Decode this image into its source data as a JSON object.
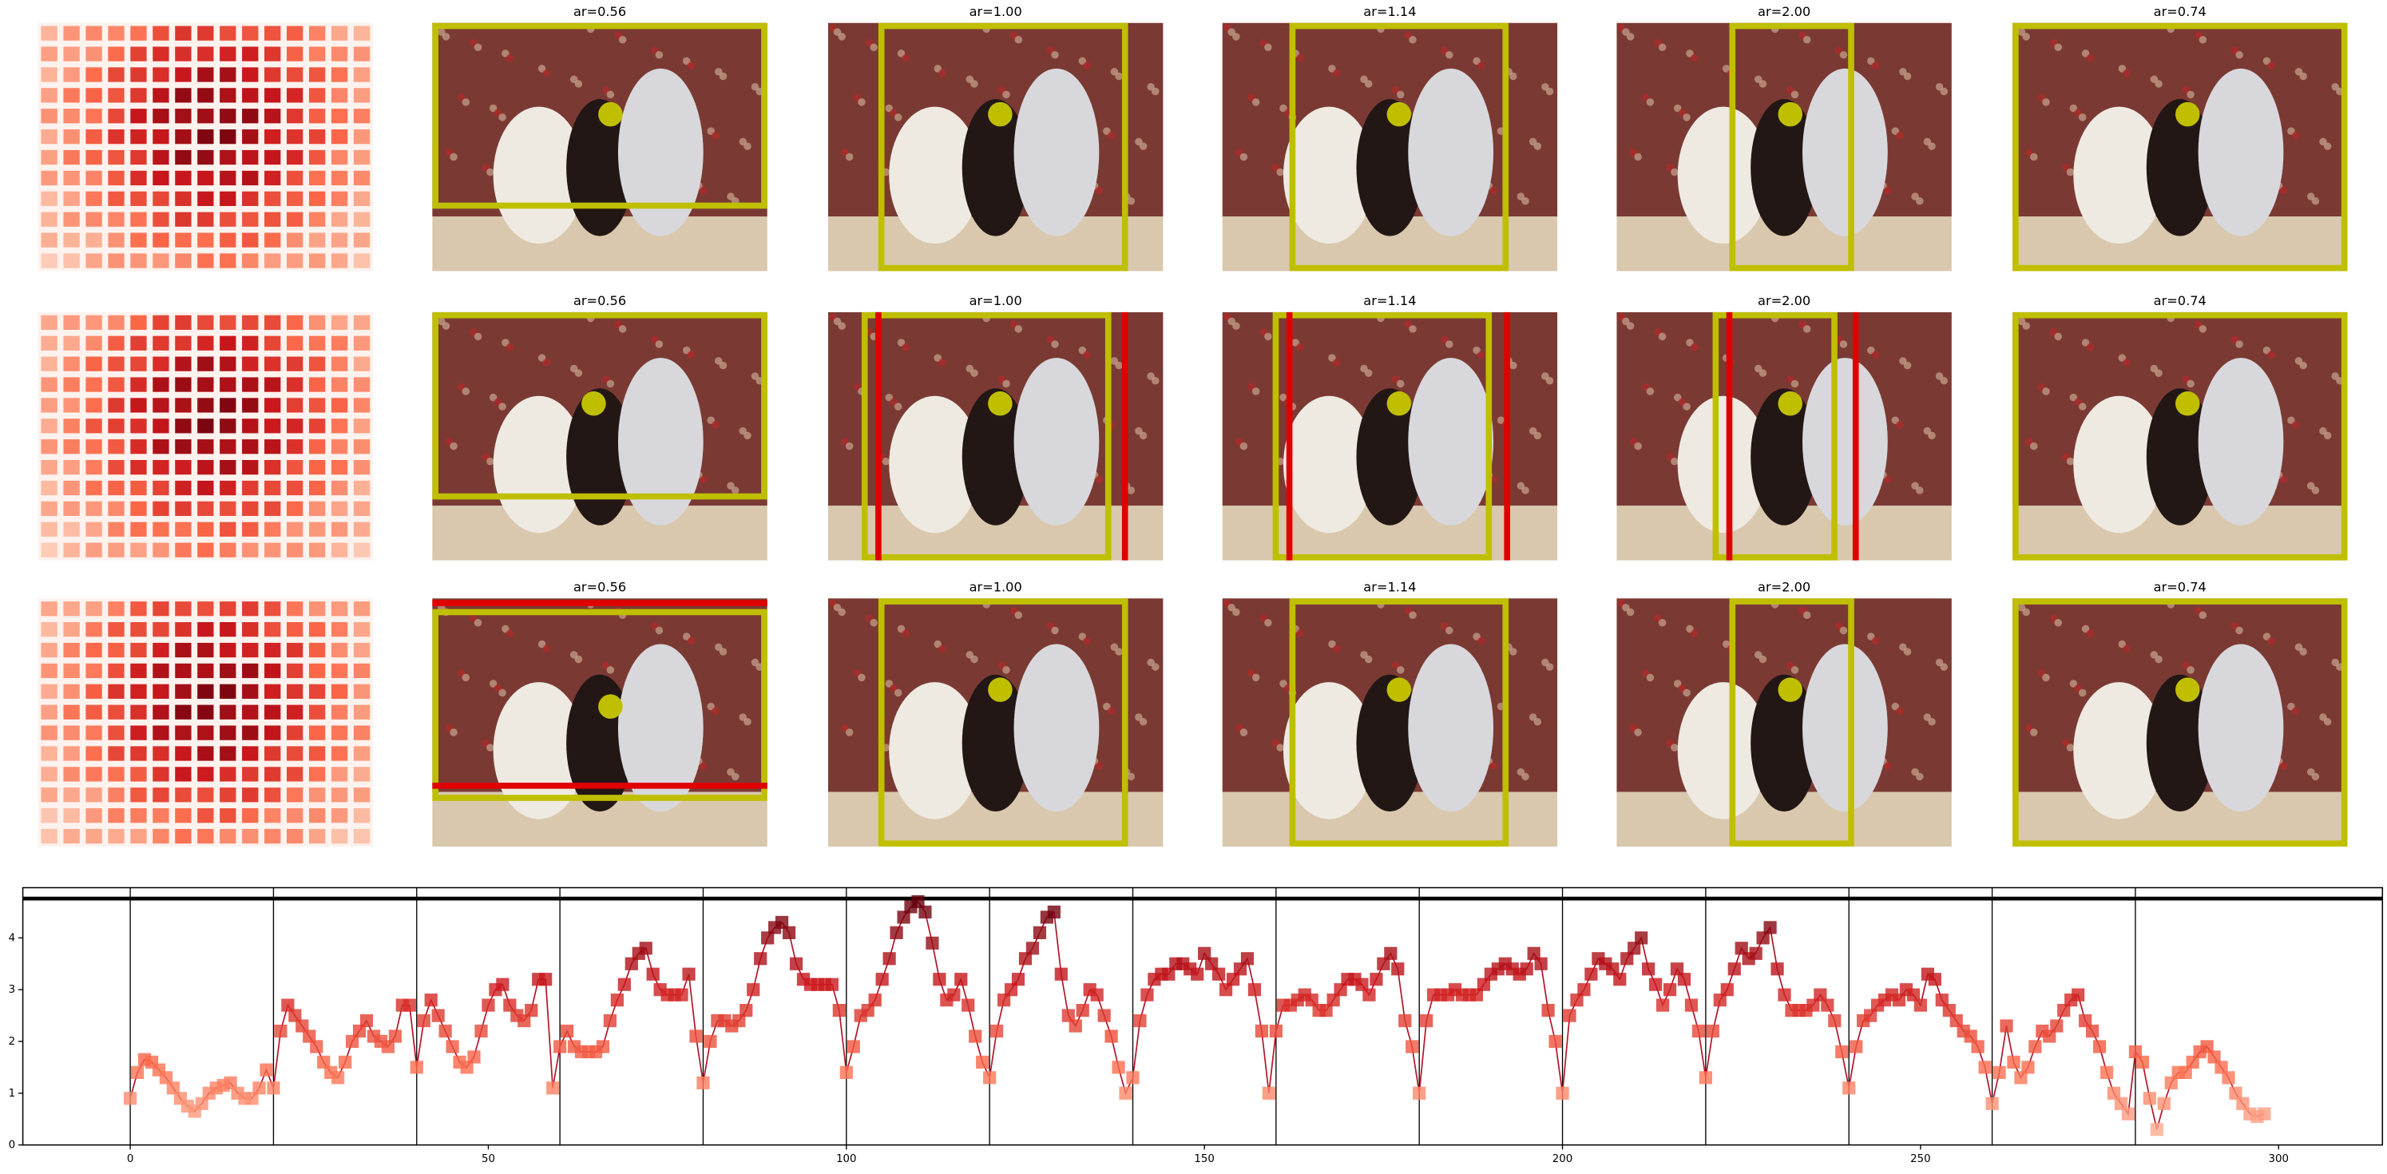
{
  "panel_titles": [
    [
      "ar=0.56",
      "ar=1.00",
      "ar=1.14",
      "ar=2.00",
      "ar=0.74"
    ],
    [
      "ar=0.56",
      "ar=1.00",
      "ar=1.14",
      "ar=2.00",
      "ar=0.74"
    ],
    [
      "ar=0.56",
      "ar=1.00",
      "ar=1.14",
      "ar=2.00",
      "ar=0.74"
    ]
  ],
  "chart_data": {
    "type": "line",
    "color": "#b2182b",
    "marker_colormap": "Reds",
    "x": [
      0,
      1,
      2,
      3,
      4,
      5,
      6,
      7,
      8,
      9,
      10,
      11,
      12,
      13,
      14,
      15,
      16,
      17,
      18,
      19,
      20,
      21,
      22,
      23,
      24,
      25,
      26,
      27,
      28,
      29,
      30,
      31,
      32,
      33,
      34,
      35,
      36,
      37,
      38,
      39,
      40,
      41,
      42,
      43,
      44,
      45,
      46,
      47,
      48,
      49,
      50,
      51,
      52,
      53,
      54,
      55,
      56,
      57,
      58,
      59,
      60,
      61,
      62,
      63,
      64,
      65,
      66,
      67,
      68,
      69,
      70,
      71,
      72,
      73,
      74,
      75,
      76,
      77,
      78,
      79,
      80,
      81,
      82,
      83,
      84,
      85,
      86,
      87,
      88,
      89,
      90,
      91,
      92,
      93,
      94,
      95,
      96,
      97,
      98,
      99,
      100,
      101,
      102,
      103,
      104,
      105,
      106,
      107,
      108,
      109,
      110,
      111,
      112,
      113,
      114,
      115,
      116,
      117,
      118,
      119,
      120,
      121,
      122,
      123,
      124,
      125,
      126,
      127,
      128,
      129,
      130,
      131,
      132,
      133,
      134,
      135,
      136,
      137,
      138,
      139,
      140,
      141,
      142,
      143,
      144,
      145,
      146,
      147,
      148,
      149,
      150,
      151,
      152,
      153,
      154,
      155,
      156,
      157,
      158,
      159,
      160,
      161,
      162,
      163,
      164,
      165,
      166,
      167,
      168,
      169,
      170,
      171,
      172,
      173,
      174,
      175,
      176,
      177,
      178,
      179,
      180,
      181,
      182,
      183,
      184,
      185,
      186,
      187,
      188,
      189,
      190,
      191,
      192,
      193,
      194,
      195,
      196,
      197,
      198,
      199,
      200,
      201,
      202,
      203,
      204,
      205,
      206,
      207,
      208,
      209,
      210,
      211,
      212,
      213,
      214,
      215,
      216,
      217,
      218,
      219,
      220,
      221,
      222,
      223,
      224,
      225,
      226,
      227,
      228,
      229,
      230,
      231,
      232,
      233,
      234,
      235,
      236,
      237,
      238,
      239,
      240,
      241,
      242,
      243,
      244,
      245,
      246,
      247,
      248,
      249,
      250,
      251,
      252,
      253,
      254,
      255,
      256,
      257,
      258,
      259,
      260,
      261,
      262,
      263,
      264,
      265,
      266,
      267,
      268,
      269,
      270,
      271,
      272,
      273,
      274,
      275,
      276,
      277,
      278,
      279,
      280,
      281,
      282,
      283,
      284,
      285,
      286,
      287,
      288,
      289,
      290,
      291,
      292,
      293,
      294,
      295,
      296,
      297,
      298
    ],
    "values": [
      0.9,
      1.4,
      1.65,
      1.6,
      1.45,
      1.3,
      1.1,
      0.9,
      0.75,
      0.65,
      0.8,
      1.0,
      1.1,
      1.15,
      1.2,
      1.0,
      0.9,
      0.9,
      1.1,
      1.45,
      1.1,
      2.2,
      2.7,
      2.5,
      2.3,
      2.1,
      1.9,
      1.6,
      1.4,
      1.3,
      1.6,
      2.0,
      2.2,
      2.4,
      2.1,
      2.0,
      1.9,
      2.1,
      2.7,
      2.7,
      1.5,
      2.4,
      2.8,
      2.5,
      2.2,
      1.9,
      1.6,
      1.5,
      1.7,
      2.2,
      2.7,
      3.0,
      3.1,
      2.7,
      2.5,
      2.4,
      2.6,
      3.2,
      3.2,
      1.1,
      1.9,
      2.2,
      1.9,
      1.8,
      1.8,
      1.8,
      1.9,
      2.4,
      2.8,
      3.1,
      3.5,
      3.7,
      3.8,
      3.3,
      3.0,
      2.9,
      2.9,
      2.9,
      3.3,
      2.1,
      1.2,
      2.0,
      2.4,
      2.4,
      2.3,
      2.4,
      2.6,
      3.0,
      3.6,
      4.0,
      4.2,
      4.3,
      4.1,
      3.5,
      3.2,
      3.1,
      3.1,
      3.1,
      3.1,
      2.6,
      1.4,
      1.9,
      2.5,
      2.6,
      2.8,
      3.2,
      3.6,
      4.1,
      4.4,
      4.6,
      4.7,
      4.5,
      3.9,
      3.2,
      2.8,
      2.9,
      3.2,
      2.7,
      2.1,
      1.6,
      1.3,
      2.2,
      2.8,
      3.0,
      3.2,
      3.6,
      3.8,
      4.1,
      4.4,
      4.5,
      3.3,
      2.5,
      2.3,
      2.6,
      3.0,
      2.9,
      2.5,
      2.1,
      1.5,
      1.0,
      1.3,
      2.4,
      2.9,
      3.2,
      3.3,
      3.3,
      3.5,
      3.5,
      3.4,
      3.3,
      3.7,
      3.5,
      3.3,
      3.0,
      3.2,
      3.4,
      3.6,
      3.0,
      2.2,
      1.0,
      2.2,
      2.7,
      2.7,
      2.8,
      2.9,
      2.8,
      2.6,
      2.6,
      2.8,
      3.0,
      3.2,
      3.2,
      3.1,
      2.9,
      3.2,
      3.5,
      3.7,
      3.4,
      2.4,
      1.9,
      1.0,
      2.4,
      2.9,
      2.9,
      2.9,
      3.0,
      2.9,
      2.9,
      2.9,
      3.1,
      3.3,
      3.4,
      3.5,
      3.4,
      3.3,
      3.4,
      3.7,
      3.5,
      2.6,
      2.0,
      1.0,
      2.5,
      2.8,
      3.0,
      3.3,
      3.6,
      3.5,
      3.4,
      3.2,
      3.6,
      3.8,
      4.0,
      3.4,
      3.1,
      2.7,
      3.0,
      3.4,
      3.2,
      2.7,
      2.2,
      1.3,
      2.2,
      2.8,
      3.0,
      3.4,
      3.8,
      3.6,
      3.7,
      4.0,
      4.2,
      3.4,
      2.9,
      2.6,
      2.6,
      2.6,
      2.7,
      2.9,
      2.7,
      2.4,
      1.8,
      1.1,
      1.9,
      2.4,
      2.5,
      2.7,
      2.8,
      2.9,
      2.8,
      3.0,
      2.9,
      2.7,
      3.3,
      3.2,
      2.8,
      2.6,
      2.4,
      2.2,
      2.1,
      1.9,
      1.5,
      0.8,
      1.4,
      2.3,
      1.6,
      1.3,
      1.5,
      1.9,
      2.2,
      2.1,
      2.3,
      2.6,
      2.8,
      2.9,
      2.4,
      2.2,
      1.9,
      1.4,
      1.0,
      0.8,
      0.6,
      1.8,
      1.6,
      0.9,
      0.3,
      0.8,
      1.2,
      1.4,
      1.4,
      1.6,
      1.8,
      1.9,
      1.7,
      1.5,
      1.3,
      1.0,
      0.8,
      0.6,
      0.55,
      0.6
    ],
    "xlim": [
      -15,
      314.5
    ],
    "ylim": [
      0,
      4.97
    ],
    "xticks": [
      0,
      50,
      100,
      150,
      200,
      250,
      300
    ],
    "yticks": [
      0,
      1,
      2,
      3,
      4
    ],
    "vlines": [
      0,
      20,
      40,
      60,
      80,
      100,
      120,
      140,
      160,
      180,
      200,
      220,
      240,
      260,
      280
    ],
    "hline": 4.76
  }
}
